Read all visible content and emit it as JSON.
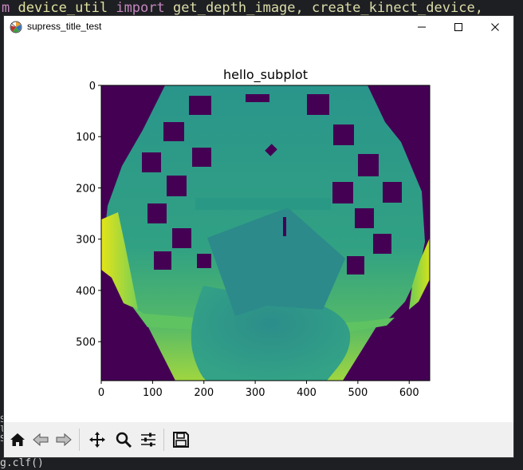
{
  "editor": {
    "code_line_top_prefix": "m ",
    "code_line_top_module": "device_util",
    "code_line_top_import": "import",
    "code_line_top_names": "get_depth_image, create_kinect_device,",
    "code_line_bottom": "g.clf()"
  },
  "window": {
    "title": "supress_title_test",
    "controls": [
      "minimize",
      "maximize",
      "close"
    ]
  },
  "figure": {
    "title": "hello_subplot",
    "x_ticks": [
      "0",
      "100",
      "200",
      "300",
      "400",
      "500",
      "600"
    ],
    "y_ticks": [
      "0",
      "100",
      "200",
      "300",
      "400",
      "500"
    ]
  },
  "chart_data": {
    "type": "heatmap",
    "title": "hello_subplot",
    "xlim": [
      0,
      640
    ],
    "ylim": [
      576,
      0
    ],
    "x_ticks": [
      0,
      100,
      200,
      300,
      400,
      500,
      600
    ],
    "y_ticks": [
      0,
      100,
      200,
      300,
      400,
      500
    ],
    "colormap": "viridis",
    "colors": {
      "background": "#440154",
      "mid": "#2a8c8c",
      "high": "#dde318"
    }
  },
  "toolbar": {
    "buttons": [
      "home-icon",
      "back-icon",
      "forward-icon",
      "pan-icon",
      "zoom-icon",
      "configure-subplots-icon",
      "save-icon"
    ]
  }
}
